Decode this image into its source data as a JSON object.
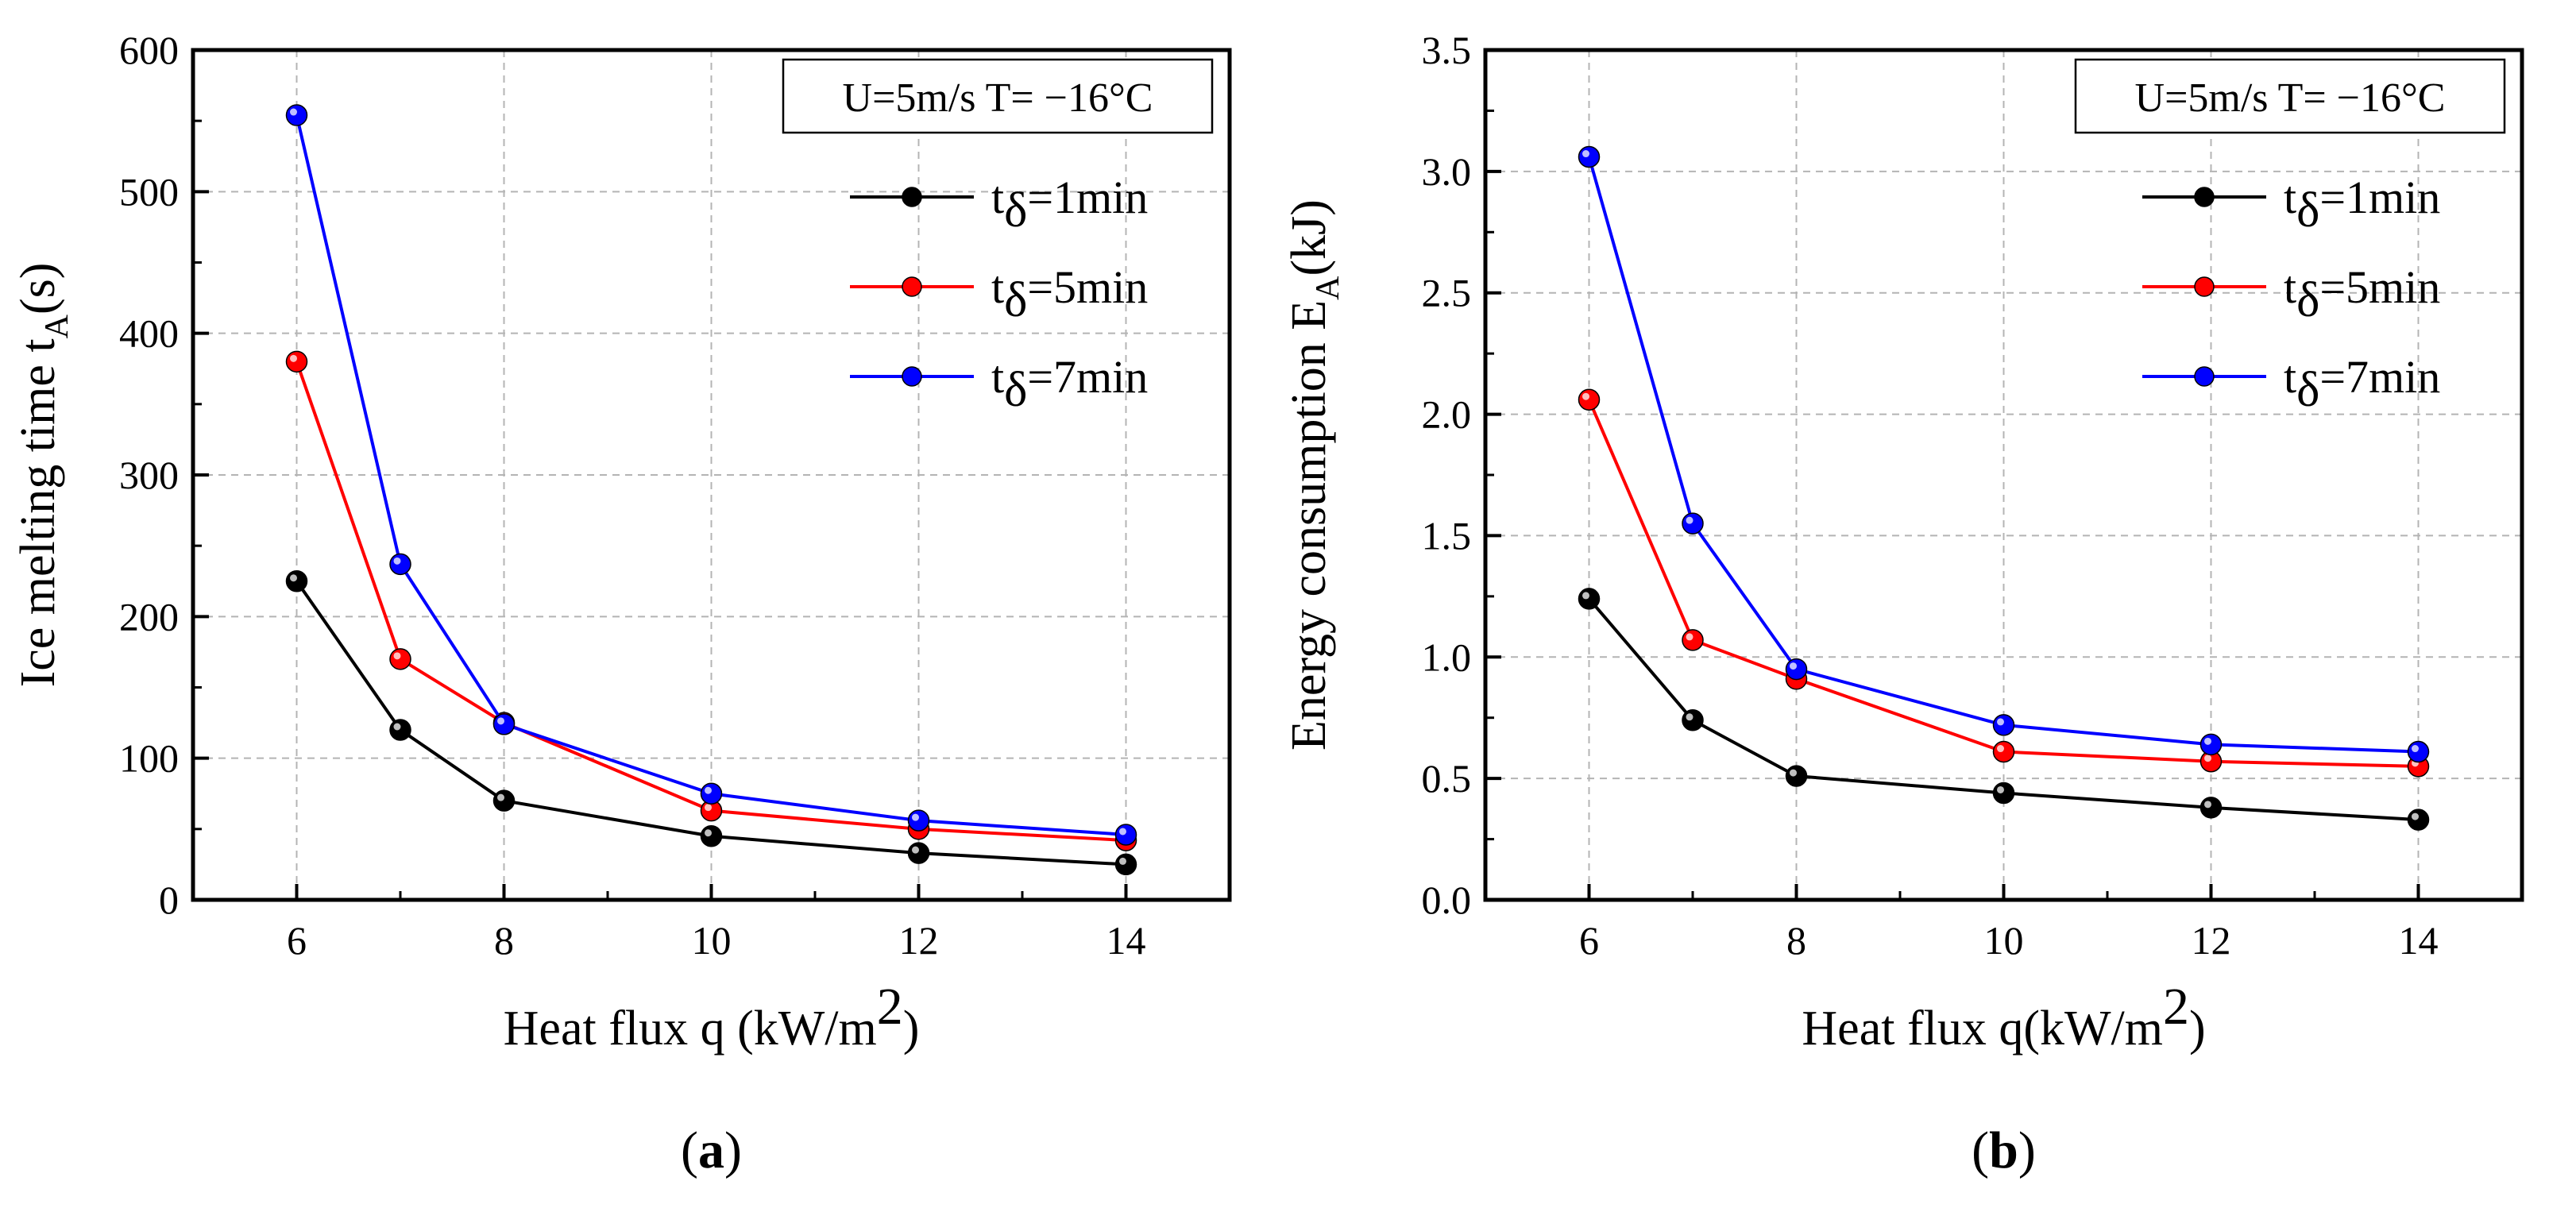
{
  "chart_data": [
    {
      "type": "line",
      "panel_label": "a",
      "condition_label": "U=5m/s  T= −16°C",
      "ylabel": {
        "main": "Ice melting time t",
        "sub": "A",
        "suffix": "(s)"
      },
      "xlabel": {
        "main": "Heat flux q (kW/m",
        "sup": "2",
        "suffix": ")"
      },
      "x": [
        6,
        7,
        8,
        10,
        12,
        14
      ],
      "xlim": [
        5,
        15
      ],
      "ylim": [
        0,
        600
      ],
      "xticks": [
        6,
        8,
        10,
        12,
        14
      ],
      "yticks": [
        0,
        100,
        200,
        300,
        400,
        500,
        600
      ],
      "ytick_labels": [
        "0",
        "100",
        "200",
        "300",
        "400",
        "500",
        "600"
      ],
      "grid": true,
      "legend_position": "top-right",
      "series": [
        {
          "name": "tδ=1min",
          "name_main": "t",
          "name_sub": "δ",
          "name_suffix": "=1min",
          "color": "#000000",
          "values": [
            225,
            120,
            70,
            45,
            33,
            25
          ]
        },
        {
          "name": "tδ=5min",
          "name_main": "t",
          "name_sub": "δ",
          "name_suffix": "=5min",
          "color": "#ff0000",
          "values": [
            380,
            170,
            125,
            63,
            50,
            42
          ]
        },
        {
          "name": "tδ=7min",
          "name_main": "t",
          "name_sub": "δ",
          "name_suffix": "=7min",
          "color": "#0000ff",
          "values": [
            554,
            237,
            124,
            75,
            56,
            46
          ]
        }
      ]
    },
    {
      "type": "line",
      "panel_label": "b",
      "condition_label": "U=5m/s  T= −16°C",
      "ylabel": {
        "main": "Energy consumption E",
        "sub": "A",
        "suffix": "(kJ)"
      },
      "xlabel": {
        "main": "Heat flux q(kW/m",
        "sup": "2",
        "suffix": ")"
      },
      "x": [
        6,
        7,
        8,
        10,
        12,
        14
      ],
      "xlim": [
        5,
        15
      ],
      "ylim": [
        0,
        3.5
      ],
      "xticks": [
        6,
        8,
        10,
        12,
        14
      ],
      "yticks": [
        0,
        0.5,
        1.0,
        1.5,
        2.0,
        2.5,
        3.0,
        3.5
      ],
      "ytick_labels": [
        "0.0",
        "0.5",
        "1.0",
        "1.5",
        "2.0",
        "2.5",
        "3.0",
        "3.5"
      ],
      "grid": true,
      "legend_position": "top-right",
      "series": [
        {
          "name": "tδ=1min",
          "name_main": "t",
          "name_sub": "δ",
          "name_suffix": "=1min",
          "color": "#000000",
          "values": [
            1.24,
            0.74,
            0.51,
            0.44,
            0.38,
            0.33
          ]
        },
        {
          "name": "tδ=5min",
          "name_main": "t",
          "name_sub": "δ",
          "name_suffix": "=5min",
          "color": "#ff0000",
          "values": [
            2.06,
            1.07,
            0.91,
            0.61,
            0.57,
            0.55
          ]
        },
        {
          "name": "tδ=7min",
          "name_main": "t",
          "name_sub": "δ",
          "name_suffix": "=7min",
          "color": "#0000ff",
          "values": [
            3.06,
            1.55,
            0.95,
            0.72,
            0.64,
            0.61
          ]
        }
      ]
    }
  ]
}
